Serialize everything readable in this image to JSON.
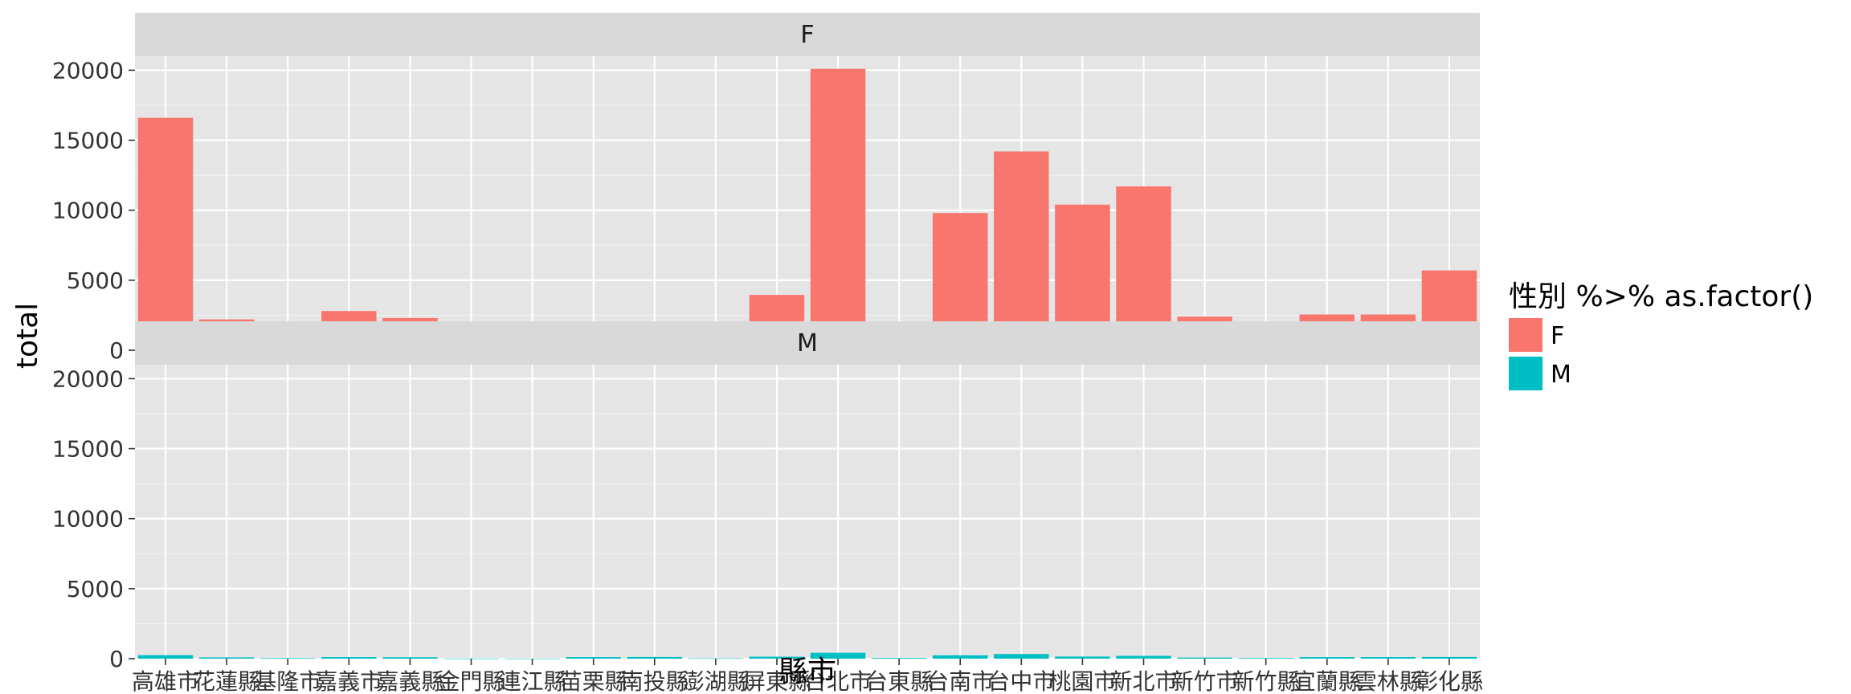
{
  "chart_data": {
    "type": "bar",
    "faceted_by": "性別",
    "xlabel": "縣市",
    "ylabel": "total",
    "ylim": [
      0,
      21000
    ],
    "yticks": [
      0,
      5000,
      10000,
      15000,
      20000
    ],
    "ytick_labels": [
      "0",
      "5000",
      "10000",
      "15000",
      "20000"
    ],
    "grid": true,
    "legend": {
      "title": "性別 %>% as.factor()",
      "placement": "right"
    },
    "categories": [
      "高雄市",
      "花蓮縣",
      "基隆市",
      "嘉義市",
      "嘉義縣",
      "金門縣",
      "連江縣",
      "苗栗縣",
      "南投縣",
      "澎湖縣",
      "屏東縣",
      "台北市",
      "台東縣",
      "台南市",
      "台中市",
      "桃園市",
      "新北市",
      "新竹市",
      "新竹縣",
      "宜蘭縣",
      "雲林縣",
      "彰化縣"
    ],
    "series": [
      {
        "name": "F",
        "color": "#F8766D",
        "values": [
          16600,
          2200,
          1650,
          2800,
          2300,
          180,
          20,
          1750,
          1850,
          330,
          3950,
          20100,
          1050,
          9800,
          14200,
          10400,
          11700,
          2400,
          1200,
          2550,
          2550,
          5700
        ]
      },
      {
        "name": "M",
        "color": "#00BFC4",
        "values": [
          250,
          90,
          40,
          110,
          100,
          10,
          5,
          110,
          120,
          25,
          140,
          420,
          50,
          240,
          330,
          150,
          200,
          80,
          45,
          110,
          110,
          120
        ]
      }
    ],
    "panels": [
      "F",
      "M"
    ]
  }
}
